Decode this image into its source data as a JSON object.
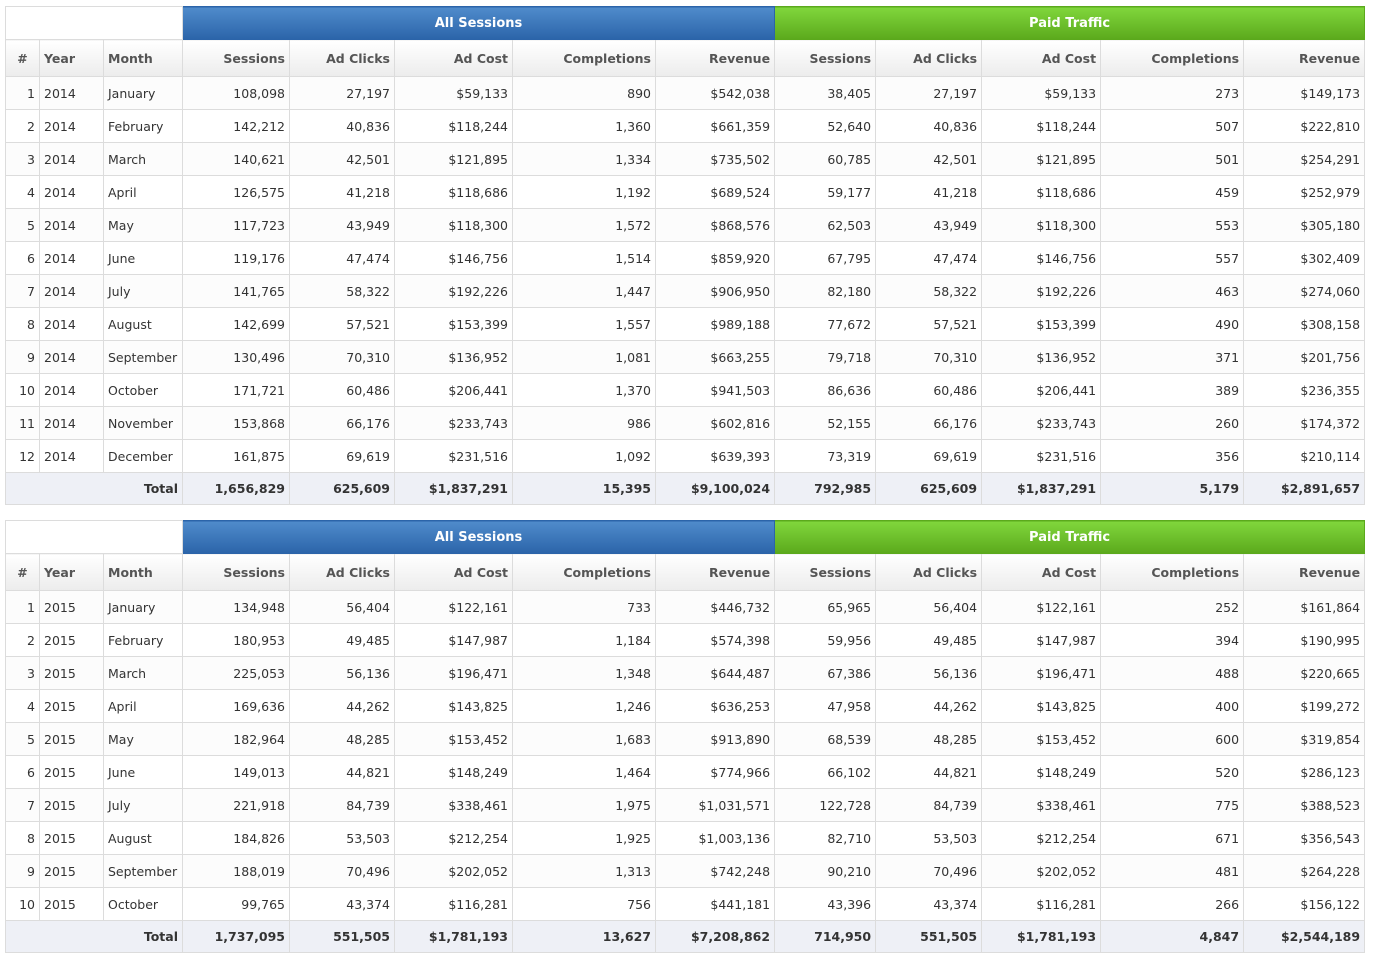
{
  "tables": [
    {
      "groups": [
        "All Sessions",
        "Paid Traffic"
      ],
      "columns": [
        "#",
        "Year",
        "Month",
        "Sessions",
        "Ad Clicks",
        "Ad Cost",
        "Completions",
        "Revenue",
        "Sessions",
        "Ad Clicks",
        "Ad Cost",
        "Completions",
        "Revenue"
      ],
      "rows": [
        [
          "1",
          "2014",
          "January",
          "108,098",
          "27,197",
          "$59,133",
          "890",
          "$542,038",
          "38,405",
          "27,197",
          "$59,133",
          "273",
          "$149,173"
        ],
        [
          "2",
          "2014",
          "February",
          "142,212",
          "40,836",
          "$118,244",
          "1,360",
          "$661,359",
          "52,640",
          "40,836",
          "$118,244",
          "507",
          "$222,810"
        ],
        [
          "3",
          "2014",
          "March",
          "140,621",
          "42,501",
          "$121,895",
          "1,334",
          "$735,502",
          "60,785",
          "42,501",
          "$121,895",
          "501",
          "$254,291"
        ],
        [
          "4",
          "2014",
          "April",
          "126,575",
          "41,218",
          "$118,686",
          "1,192",
          "$689,524",
          "59,177",
          "41,218",
          "$118,686",
          "459",
          "$252,979"
        ],
        [
          "5",
          "2014",
          "May",
          "117,723",
          "43,949",
          "$118,300",
          "1,572",
          "$868,576",
          "62,503",
          "43,949",
          "$118,300",
          "553",
          "$305,180"
        ],
        [
          "6",
          "2014",
          "June",
          "119,176",
          "47,474",
          "$146,756",
          "1,514",
          "$859,920",
          "67,795",
          "47,474",
          "$146,756",
          "557",
          "$302,409"
        ],
        [
          "7",
          "2014",
          "July",
          "141,765",
          "58,322",
          "$192,226",
          "1,447",
          "$906,950",
          "82,180",
          "58,322",
          "$192,226",
          "463",
          "$274,060"
        ],
        [
          "8",
          "2014",
          "August",
          "142,699",
          "57,521",
          "$153,399",
          "1,557",
          "$989,188",
          "77,672",
          "57,521",
          "$153,399",
          "490",
          "$308,158"
        ],
        [
          "9",
          "2014",
          "September",
          "130,496",
          "70,310",
          "$136,952",
          "1,081",
          "$663,255",
          "79,718",
          "70,310",
          "$136,952",
          "371",
          "$201,756"
        ],
        [
          "10",
          "2014",
          "October",
          "171,721",
          "60,486",
          "$206,441",
          "1,370",
          "$941,503",
          "86,636",
          "60,486",
          "$206,441",
          "389",
          "$236,355"
        ],
        [
          "11",
          "2014",
          "November",
          "153,868",
          "66,176",
          "$233,743",
          "986",
          "$602,816",
          "52,155",
          "66,176",
          "$233,743",
          "260",
          "$174,372"
        ],
        [
          "12",
          "2014",
          "December",
          "161,875",
          "69,619",
          "$231,516",
          "1,092",
          "$639,393",
          "73,319",
          "69,619",
          "$231,516",
          "356",
          "$210,114"
        ]
      ],
      "total_label": "Total",
      "totals": [
        "1,656,829",
        "625,609",
        "$1,837,291",
        "15,395",
        "$9,100,024",
        "792,985",
        "625,609",
        "$1,837,291",
        "5,179",
        "$2,891,657"
      ]
    },
    {
      "groups": [
        "All Sessions",
        "Paid Traffic"
      ],
      "columns": [
        "#",
        "Year",
        "Month",
        "Sessions",
        "Ad Clicks",
        "Ad Cost",
        "Completions",
        "Revenue",
        "Sessions",
        "Ad Clicks",
        "Ad Cost",
        "Completions",
        "Revenue"
      ],
      "rows": [
        [
          "1",
          "2015",
          "January",
          "134,948",
          "56,404",
          "$122,161",
          "733",
          "$446,732",
          "65,965",
          "56,404",
          "$122,161",
          "252",
          "$161,864"
        ],
        [
          "2",
          "2015",
          "February",
          "180,953",
          "49,485",
          "$147,987",
          "1,184",
          "$574,398",
          "59,956",
          "49,485",
          "$147,987",
          "394",
          "$190,995"
        ],
        [
          "3",
          "2015",
          "March",
          "225,053",
          "56,136",
          "$196,471",
          "1,348",
          "$644,487",
          "67,386",
          "56,136",
          "$196,471",
          "488",
          "$220,665"
        ],
        [
          "4",
          "2015",
          "April",
          "169,636",
          "44,262",
          "$143,825",
          "1,246",
          "$636,253",
          "47,958",
          "44,262",
          "$143,825",
          "400",
          "$199,272"
        ],
        [
          "5",
          "2015",
          "May",
          "182,964",
          "48,285",
          "$153,452",
          "1,683",
          "$913,890",
          "68,539",
          "48,285",
          "$153,452",
          "600",
          "$319,854"
        ],
        [
          "6",
          "2015",
          "June",
          "149,013",
          "44,821",
          "$148,249",
          "1,464",
          "$774,966",
          "66,102",
          "44,821",
          "$148,249",
          "520",
          "$286,123"
        ],
        [
          "7",
          "2015",
          "July",
          "221,918",
          "84,739",
          "$338,461",
          "1,975",
          "$1,031,571",
          "122,728",
          "84,739",
          "$338,461",
          "775",
          "$388,523"
        ],
        [
          "8",
          "2015",
          "August",
          "184,826",
          "53,503",
          "$212,254",
          "1,925",
          "$1,003,136",
          "82,710",
          "53,503",
          "$212,254",
          "671",
          "$356,543"
        ],
        [
          "9",
          "2015",
          "September",
          "188,019",
          "70,496",
          "$202,052",
          "1,313",
          "$742,248",
          "90,210",
          "70,496",
          "$202,052",
          "481",
          "$264,228"
        ],
        [
          "10",
          "2015",
          "October",
          "99,765",
          "43,374",
          "$116,281",
          "756",
          "$441,181",
          "43,396",
          "43,374",
          "$116,281",
          "266",
          "$156,122"
        ]
      ],
      "total_label": "Total",
      "totals": [
        "1,737,095",
        "551,505",
        "$1,781,193",
        "13,627",
        "$7,208,862",
        "714,950",
        "551,505",
        "$1,781,193",
        "4,847",
        "$2,544,189"
      ]
    }
  ]
}
